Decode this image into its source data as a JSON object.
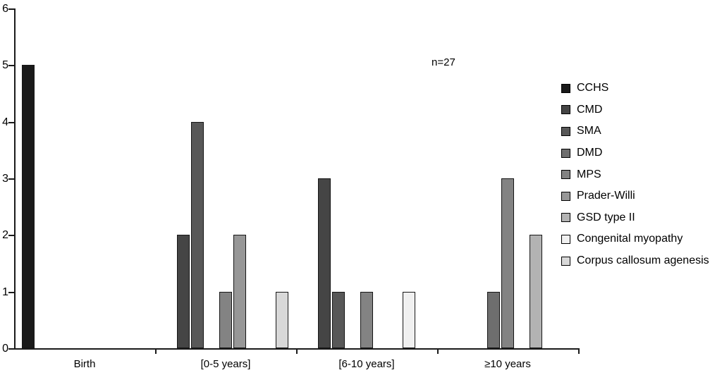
{
  "chart_data": {
    "type": "bar",
    "title": "",
    "xlabel": "",
    "ylabel": "",
    "annotation": "n=27",
    "categories": [
      "Birth",
      "[0-5 years]",
      "[6-10 years]",
      "≥10 years"
    ],
    "series": [
      {
        "name": "CCHS",
        "color": "#1a1a1a",
        "values": [
          5,
          0,
          0,
          0
        ]
      },
      {
        "name": "CMD",
        "color": "#454545",
        "values": [
          0,
          2,
          3,
          0
        ]
      },
      {
        "name": "SMA",
        "color": "#585858",
        "values": [
          0,
          4,
          1,
          0
        ]
      },
      {
        "name": "DMD",
        "color": "#6e6e6e",
        "values": [
          0,
          0,
          0,
          1
        ]
      },
      {
        "name": "MPS",
        "color": "#838383",
        "values": [
          0,
          1,
          1,
          3
        ]
      },
      {
        "name": "Prader-Willi",
        "color": "#979797",
        "values": [
          0,
          2,
          0,
          0
        ]
      },
      {
        "name": "GSD type II",
        "color": "#b3b3b3",
        "values": [
          0,
          0,
          0,
          2
        ]
      },
      {
        "name": "Congenital myopathy",
        "color": "#f0f0f0",
        "values": [
          0,
          0,
          1,
          0
        ]
      },
      {
        "name": "Corpus callosum agenesis",
        "color": "#d8d8d8",
        "values": [
          0,
          1,
          0,
          0
        ]
      }
    ],
    "ylim": [
      0,
      6
    ],
    "yticks": [
      0,
      1,
      2,
      3,
      4,
      5,
      6
    ],
    "grid": false,
    "legend_position": "right",
    "bar_outline_color": "#161616",
    "background_color": "#ffffff"
  }
}
